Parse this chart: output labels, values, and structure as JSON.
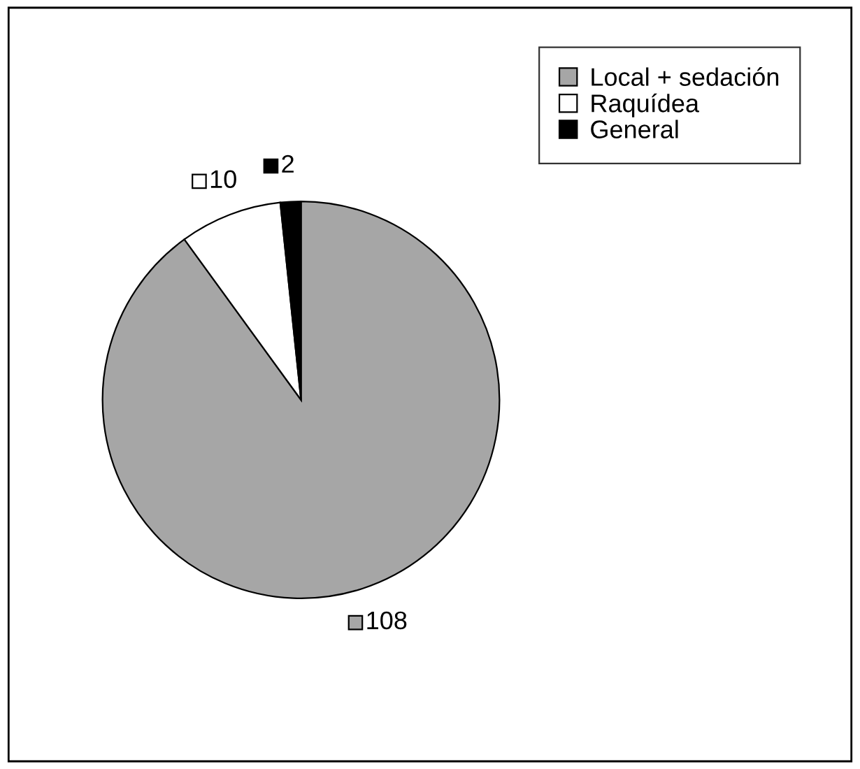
{
  "chart_data": {
    "type": "pie",
    "categories": [
      "Local + sedación",
      "Raquídea",
      "General"
    ],
    "values": [
      108,
      10,
      2
    ],
    "colors": [
      "#a6a6a6",
      "#ffffff",
      "#000000"
    ],
    "data_labels": true,
    "legend": "top right"
  }
}
